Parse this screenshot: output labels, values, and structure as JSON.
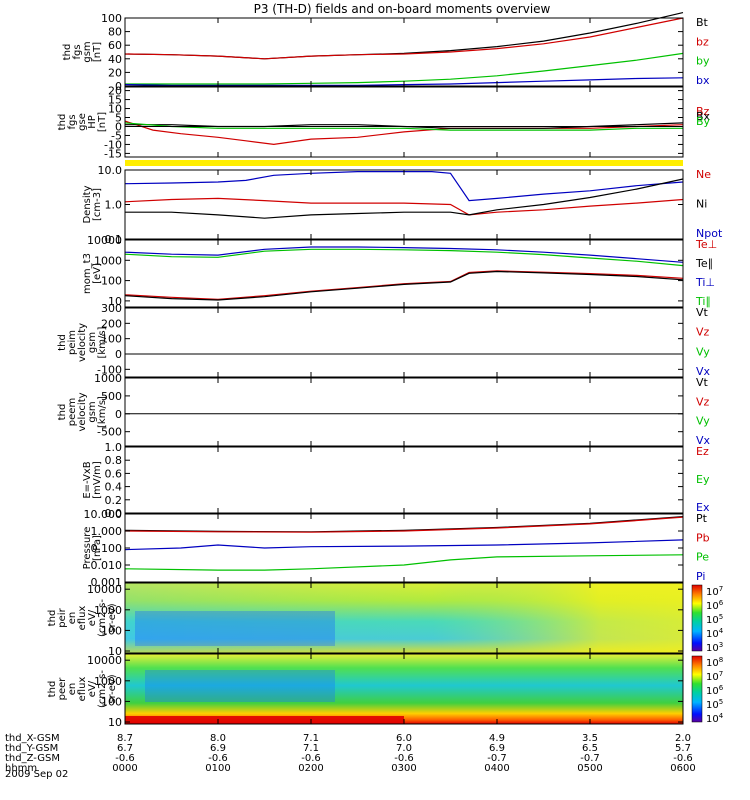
{
  "chart_data": {
    "type": "line",
    "title": "P3 (TH-D) fields and on-board moments overview",
    "date": "2009 Sep 02",
    "time_ticks": [
      "0000",
      "0100",
      "0200",
      "0300",
      "0400",
      "0500",
      "0600"
    ],
    "ephemeris": [
      {
        "label": "thd_X-GSM",
        "values": [
          "8.7",
          "8.0",
          "7.1",
          "6.0",
          "4.9",
          "3.5",
          "2.0"
        ]
      },
      {
        "label": "thd_Y-GSM",
        "values": [
          "6.7",
          "6.9",
          "7.1",
          "7.0",
          "6.9",
          "6.5",
          "5.7"
        ]
      },
      {
        "label": "thd_Z-GSM",
        "values": [
          "-0.6",
          "-0.6",
          "-0.6",
          "-0.6",
          "-0.7",
          "-0.7",
          "-0.6"
        ]
      },
      {
        "label": "hhmm",
        "values": []
      }
    ],
    "panels": [
      {
        "id": "fgs_gsm",
        "ylabel": [
          "thd",
          "fgs",
          "gsm",
          "[nT]"
        ],
        "scale": "linear",
        "ylim": [
          0,
          100
        ],
        "ticks": [
          "0",
          "20",
          "40",
          "60",
          "80",
          "100"
        ],
        "tick_values": [
          0,
          20,
          40,
          60,
          80,
          100
        ],
        "legend": [
          {
            "name": "Bt",
            "color": "#000000"
          },
          {
            "name": "bz",
            "color": "#d00000"
          },
          {
            "name": "by",
            "color": "#00c000"
          },
          {
            "name": "bx",
            "color": "#0000c0"
          }
        ],
        "series": [
          {
            "name": "Bt",
            "color": "#000000",
            "x": [
              0,
              0.5,
              1,
              1.5,
              2,
              2.5,
              3,
              3.5,
              4,
              4.5,
              5,
              5.5,
              6
            ],
            "y": [
              47,
              46,
              44,
              40,
              44,
              46,
              48,
              52,
              58,
              66,
              78,
              92,
              108
            ]
          },
          {
            "name": "bz",
            "color": "#d00000",
            "x": [
              0,
              0.5,
              1,
              1.5,
              2,
              2.5,
              3,
              3.5,
              4,
              4.5,
              5,
              5.5,
              6
            ],
            "y": [
              47,
              46,
              44,
              40,
              44,
              46,
              47,
              50,
              55,
              62,
              72,
              86,
              100
            ]
          },
          {
            "name": "by",
            "color": "#00c000",
            "x": [
              0,
              0.5,
              1,
              1.5,
              2,
              2.5,
              3,
              3.5,
              4,
              4.5,
              5,
              5.5,
              6
            ],
            "y": [
              3,
              3,
              3,
              3,
              4,
              5,
              7,
              10,
              15,
              22,
              30,
              38,
              48
            ]
          },
          {
            "name": "bx",
            "color": "#0000c0",
            "x": [
              0,
              0.5,
              1,
              1.5,
              2,
              2.5,
              3,
              3.5,
              4,
              4.5,
              5,
              5.5,
              6
            ],
            "y": [
              2,
              1,
              1,
              1,
              1,
              1,
              2,
              3,
              5,
              7,
              9,
              11,
              12
            ]
          }
        ]
      },
      {
        "id": "fgs_gse_hp",
        "ylabel": [
          "thd",
          "fgs",
          "gse",
          "HP",
          "[nT]"
        ],
        "scale": "linear",
        "ylim": [
          -17,
          22
        ],
        "ticks": [
          "20",
          "15",
          "10",
          "5",
          "0",
          "-5",
          "-10",
          "-15"
        ],
        "tick_values": [
          20,
          15,
          10,
          5,
          0,
          -5,
          -10,
          -15
        ],
        "legend": [
          {
            "name": "Bz",
            "color": "#d00000"
          },
          {
            "name": "Bx",
            "color": "#000000"
          },
          {
            "name": "By",
            "color": "#00c000"
          }
        ],
        "series": [
          {
            "name": "Bz",
            "color": "#d00000",
            "x": [
              0,
              0.3,
              0.6,
              1,
              1.3,
              1.6,
              2,
              2.5,
              3,
              3.5,
              4,
              4.5,
              5,
              5.5,
              6
            ],
            "y": [
              3,
              -2,
              -4,
              -6,
              -8,
              -10,
              -7,
              -6,
              -3,
              -1,
              -1,
              -1,
              -1,
              0,
              1
            ]
          },
          {
            "name": "Bx",
            "color": "#000000",
            "x": [
              0,
              0.5,
              1,
              1.5,
              2,
              2.5,
              3,
              3.5,
              4,
              4.5,
              5,
              5.5,
              6
            ],
            "y": [
              1,
              1,
              0,
              0,
              1,
              1,
              0,
              -1,
              -1,
              -1,
              0,
              1,
              2
            ]
          },
          {
            "name": "By",
            "color": "#00c000",
            "x": [
              0,
              0.5,
              1,
              1.5,
              2,
              2.5,
              3,
              3.5,
              4,
              4.5,
              5,
              5.5,
              6
            ],
            "y": [
              2,
              0,
              -1,
              -1,
              -1,
              -1,
              -1,
              -2,
              -2,
              -2,
              -2,
              -1,
              -1
            ]
          }
        ]
      },
      {
        "id": "density",
        "ylabel": [
          "Density",
          "[cm-3]"
        ],
        "scale": "log",
        "ylim": [
          0.1,
          10
        ],
        "ticks": [
          "10.0",
          "1.0",
          "0.1"
        ],
        "tick_values": [
          10,
          1,
          0.1
        ],
        "legend": [
          {
            "name": "Ne",
            "color": "#d00000"
          },
          {
            "name": "Ni",
            "color": "#000000"
          },
          {
            "name": "Npot",
            "color": "#0000c0"
          }
        ],
        "series": [
          {
            "name": "Npot",
            "color": "#0000c0",
            "x": [
              0,
              0.5,
              1,
              1.3,
              1.6,
              2,
              2.5,
              3,
              3.3,
              3.5,
              3.7,
              4,
              4.5,
              5,
              5.5,
              6
            ],
            "y": [
              4,
              4.2,
              4.5,
              5,
              7,
              8,
              9,
              9,
              9,
              8,
              1.3,
              1.5,
              2,
              2.5,
              3.5,
              4.5
            ]
          },
          {
            "name": "Ne",
            "color": "#d00000",
            "x": [
              0,
              0.5,
              1,
              1.5,
              2,
              2.5,
              3,
              3.5,
              3.7,
              4,
              4.5,
              5,
              5.5,
              6
            ],
            "y": [
              1.2,
              1.4,
              1.5,
              1.3,
              1.1,
              1.1,
              1.1,
              1.0,
              0.5,
              0.6,
              0.7,
              0.9,
              1.1,
              1.4
            ]
          },
          {
            "name": "Ni",
            "color": "#000000",
            "x": [
              0,
              0.5,
              1,
              1.5,
              2,
              2.5,
              3,
              3.5,
              3.7,
              4,
              4.5,
              5,
              5.5,
              6
            ],
            "y": [
              0.6,
              0.6,
              0.5,
              0.4,
              0.5,
              0.55,
              0.6,
              0.6,
              0.5,
              0.7,
              1.0,
              1.6,
              2.8,
              5.5
            ]
          }
        ]
      },
      {
        "id": "mom_temp",
        "ylabel": [
          "mom_t3",
          "[eV]"
        ],
        "scale": "log",
        "ylim": [
          5,
          10000
        ],
        "ticks": [
          "10000",
          "1000",
          "100",
          "10"
        ],
        "tick_values": [
          10000,
          1000,
          100,
          10
        ],
        "legend": [
          {
            "name": "Te⊥",
            "color": "#d00000"
          },
          {
            "name": "Te∥",
            "color": "#000000"
          },
          {
            "name": "Ti⊥",
            "color": "#0000c0"
          },
          {
            "name": "Ti∥",
            "color": "#00c000"
          }
        ],
        "series": [
          {
            "name": "Ti⊥",
            "color": "#0000c0",
            "x": [
              0,
              0.5,
              1,
              1.5,
              2,
              2.5,
              3,
              3.5,
              4,
              4.5,
              5,
              5.5,
              6
            ],
            "y": [
              2500,
              2000,
              1800,
              3500,
              4500,
              4500,
              4200,
              3800,
              3300,
              2500,
              1800,
              1200,
              800
            ]
          },
          {
            "name": "Ti∥",
            "color": "#00c000",
            "x": [
              0,
              0.5,
              1,
              1.5,
              2,
              2.5,
              3,
              3.5,
              4,
              4.5,
              5,
              5.5,
              6
            ],
            "y": [
              2000,
              1500,
              1400,
              2800,
              3500,
              3500,
              3300,
              3000,
              2500,
              1900,
              1300,
              900,
              550
            ]
          },
          {
            "name": "Te⊥",
            "color": "#d00000",
            "x": [
              0,
              0.5,
              1,
              1.5,
              2,
              2.5,
              3,
              3.5,
              3.7,
              4,
              4.5,
              5,
              5.5,
              6
            ],
            "y": [
              20,
              15,
              12,
              18,
              30,
              45,
              70,
              90,
              250,
              300,
              260,
              220,
              180,
              130
            ]
          },
          {
            "name": "Te∥",
            "color": "#000000",
            "x": [
              0,
              0.5,
              1,
              1.5,
              2,
              2.5,
              3,
              3.5,
              3.7,
              4,
              4.5,
              5,
              5.5,
              6
            ],
            "y": [
              18,
              13,
              11,
              16,
              28,
              42,
              65,
              85,
              230,
              280,
              240,
              200,
              160,
              110
            ]
          }
        ]
      },
      {
        "id": "peim_velocity",
        "ylabel": [
          "thd",
          "peim",
          "velocity",
          "gsm",
          "[km/s]"
        ],
        "scale": "linear",
        "ylim": [
          -150,
          300
        ],
        "ticks": [
          "300",
          "200",
          "100",
          "0",
          "-100"
        ],
        "tick_values": [
          300,
          200,
          100,
          0,
          -100
        ],
        "legend": [
          {
            "name": "Vt",
            "color": "#000000"
          },
          {
            "name": "Vz",
            "color": "#d00000"
          },
          {
            "name": "Vy",
            "color": "#00c000"
          },
          {
            "name": "Vx",
            "color": "#0000c0"
          }
        ],
        "series": []
      },
      {
        "id": "peem_velocity",
        "ylabel": [
          "thd",
          "peem",
          "velocity",
          "gsm",
          "[km/s]"
        ],
        "scale": "linear",
        "ylim": [
          -900,
          1000
        ],
        "ticks": [
          "1000",
          "500",
          "0",
          "-500"
        ],
        "tick_values": [
          1000,
          500,
          0,
          -500
        ],
        "legend": [
          {
            "name": "Vt",
            "color": "#000000"
          },
          {
            "name": "Vz",
            "color": "#d00000"
          },
          {
            "name": "Vy",
            "color": "#00c000"
          },
          {
            "name": "Vx",
            "color": "#0000c0"
          }
        ],
        "series": []
      },
      {
        "id": "exb",
        "ylabel": [
          "E=-VxB",
          "[mV/m]"
        ],
        "scale": "linear",
        "ylim": [
          0,
          1.0
        ],
        "ticks": [
          "1.0",
          "0.8",
          "0.6",
          "0.4",
          "0.2",
          "0.0"
        ],
        "tick_values": [
          1,
          0.8,
          0.6,
          0.4,
          0.2,
          0
        ],
        "legend": [
          {
            "name": "Ez",
            "color": "#d00000"
          },
          {
            "name": "Ey",
            "color": "#00c000"
          },
          {
            "name": "Ex",
            "color": "#0000c0"
          }
        ],
        "series": []
      },
      {
        "id": "pressure",
        "ylabel": [
          "Pressure",
          "[nPa]"
        ],
        "scale": "log",
        "ylim": [
          0.001,
          10
        ],
        "ticks": [
          "10.000",
          "1.000",
          "0.100",
          "0.010",
          "0.001"
        ],
        "tick_values": [
          10,
          1,
          0.1,
          0.01,
          0.001
        ],
        "legend": [
          {
            "name": "Pt",
            "color": "#000000"
          },
          {
            "name": "Pb",
            "color": "#d00000"
          },
          {
            "name": "Pe",
            "color": "#00c000"
          },
          {
            "name": "Pi",
            "color": "#0000c0"
          }
        ],
        "series": [
          {
            "name": "Pt",
            "color": "#000000",
            "x": [
              0,
              1,
              2,
              3,
              4,
              5,
              6
            ],
            "y": [
              1.1,
              0.95,
              0.9,
              1.1,
              1.6,
              2.8,
              7
            ]
          },
          {
            "name": "Pb",
            "color": "#d00000",
            "x": [
              0,
              1,
              2,
              3,
              4,
              5,
              6
            ],
            "y": [
              1.0,
              0.9,
              0.85,
              1.0,
              1.5,
              2.6,
              6.5
            ]
          },
          {
            "name": "Pi",
            "color": "#0000c0",
            "x": [
              0,
              0.6,
              1,
              1.5,
              2,
              3,
              4,
              5,
              6
            ],
            "y": [
              0.08,
              0.1,
              0.15,
              0.1,
              0.12,
              0.13,
              0.15,
              0.2,
              0.3
            ]
          },
          {
            "name": "Pe",
            "color": "#00c000",
            "x": [
              0,
              1,
              1.5,
              2,
              3,
              3.5,
              4,
              5,
              6
            ],
            "y": [
              0.006,
              0.005,
              0.005,
              0.006,
              0.01,
              0.02,
              0.03,
              0.035,
              0.04
            ]
          }
        ]
      },
      {
        "id": "peir_en_eflux",
        "ylabel": [
          "thd",
          "peir",
          "en",
          "eflux",
          "eV/",
          "(cm2-s-",
          "sr-eV)"
        ],
        "scale": "log",
        "ylim": [
          8,
          20000
        ],
        "ticks": [
          "10000",
          "1000",
          "100",
          "10"
        ],
        "tick_values": [
          10000,
          1000,
          100,
          10
        ],
        "colorbar": {
          "ticks": [
            {
              "b": "10",
              "e": "7"
            },
            {
              "b": "10",
              "e": "6"
            },
            {
              "b": "10",
              "e": "5"
            },
            {
              "b": "10",
              "e": "4"
            },
            {
              "b": "10",
              "e": "3"
            }
          ]
        }
      },
      {
        "id": "peer_en_eflux",
        "ylabel": [
          "thd",
          "peer",
          "en",
          "eflux",
          "eV/",
          "(cm2-s-",
          "sr-eV)"
        ],
        "scale": "log",
        "ylim": [
          8,
          20000
        ],
        "ticks": [
          "10000",
          "1000",
          "100",
          "10"
        ],
        "tick_values": [
          10000,
          1000,
          100,
          10
        ],
        "colorbar": {
          "ticks": [
            {
              "b": "10",
              "e": "8"
            },
            {
              "b": "10",
              "e": "7"
            },
            {
              "b": "10",
              "e": "6"
            },
            {
              "b": "10",
              "e": "5"
            },
            {
              "b": "10",
              "e": "4"
            }
          ]
        }
      }
    ]
  }
}
